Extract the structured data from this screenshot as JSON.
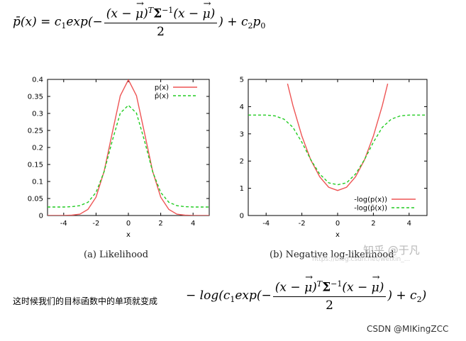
{
  "formula_top": {
    "lhs": "p̄(x) = c",
    "c1_sub": "1",
    "exp_open": "exp(−",
    "num_a": "(x − ",
    "mu": "μ",
    "num_b": ")",
    "T": "T",
    "Sigma": "Σ",
    "inv": "−1",
    "num_c": "(x − ",
    "num_d": ")",
    "den": "2",
    "tail": ") + c",
    "c2_sub": "2",
    "p0": "p",
    "p0_sub": "0"
  },
  "note": "这时候我们的目标函数中的单项就变成",
  "formula_bottom": {
    "lead": "− log(c",
    "c1_sub": "1",
    "exp_open": "exp(−",
    "num_a": "(x − ",
    "mu": "μ",
    "num_b": ")",
    "T": "T",
    "Sigma": "Σ",
    "inv": "−1",
    "num_c": "(x − ",
    "num_d": ")",
    "den": "2",
    "tail": ") + c",
    "c2_sub": "2",
    "close": ")"
  },
  "captions": {
    "a": "(a)  Likelihood",
    "b": "(b)  Negative log-likelihood"
  },
  "watermarks": {
    "zhihu": "知乎 @于凡",
    "blog": "https://blog.csdn.net/weixin_...",
    "csdn": "CSDN @MIKingZCC"
  },
  "colors": {
    "solid": "#ee5555",
    "dashed": "#22cc22"
  },
  "chart_data": [
    {
      "type": "line",
      "xlabel": "x",
      "ylabel": "",
      "xlim": [
        -5,
        5
      ],
      "ylim": [
        0,
        0.4
      ],
      "xticks": [
        -4,
        -2,
        0,
        2,
        4
      ],
      "yticks": [
        0,
        0.05,
        0.1,
        0.15,
        0.2,
        0.25,
        0.3,
        0.35,
        0.4
      ],
      "legend_position": "top-right",
      "series": [
        {
          "name": "p(x)",
          "style": "solid",
          "x": [
            -5,
            -4.5,
            -4,
            -3.5,
            -3,
            -2.5,
            -2,
            -1.5,
            -1,
            -0.5,
            0,
            0.5,
            1,
            1.5,
            2,
            2.5,
            3,
            3.5,
            4,
            4.5,
            5
          ],
          "y": [
            0,
            0,
            0,
            0.001,
            0.004,
            0.018,
            0.054,
            0.13,
            0.242,
            0.352,
            0.399,
            0.352,
            0.242,
            0.13,
            0.054,
            0.018,
            0.004,
            0.001,
            0,
            0,
            0
          ]
        },
        {
          "name": "p̄(x)",
          "style": "dashed",
          "x": [
            -5,
            -4.5,
            -4,
            -3.5,
            -3,
            -2.5,
            -2,
            -1.5,
            -1,
            -0.5,
            0,
            0.5,
            1,
            1.5,
            2,
            2.5,
            3,
            3.5,
            4,
            4.5,
            5
          ],
          "y": [
            0.025,
            0.025,
            0.025,
            0.026,
            0.029,
            0.039,
            0.068,
            0.129,
            0.219,
            0.301,
            0.324,
            0.301,
            0.219,
            0.129,
            0.068,
            0.039,
            0.029,
            0.026,
            0.025,
            0.025,
            0.025
          ]
        }
      ]
    },
    {
      "type": "line",
      "xlabel": "x",
      "ylabel": "",
      "xlim": [
        -5,
        5
      ],
      "ylim": [
        0,
        5
      ],
      "xticks": [
        -4,
        -2,
        0,
        2,
        4
      ],
      "yticks": [
        0,
        1,
        2,
        3,
        4,
        5
      ],
      "legend_position": "bottom-right",
      "series": [
        {
          "name": "-log(p(x))",
          "style": "solid",
          "x": [
            -2.8,
            -2.5,
            -2,
            -1.5,
            -1,
            -0.5,
            0,
            0.5,
            1,
            1.5,
            2,
            2.5,
            2.8
          ],
          "y": [
            4.84,
            4.04,
            2.92,
            2.04,
            1.42,
            1.04,
            0.92,
            1.04,
            1.42,
            2.04,
            2.92,
            4.04,
            4.84
          ]
        },
        {
          "name": "-log(p̄(x))",
          "style": "dashed",
          "x": [
            -5,
            -4.5,
            -4,
            -3.5,
            -3,
            -2.5,
            -2,
            -1.5,
            -1,
            -0.5,
            0,
            0.5,
            1,
            1.5,
            2,
            2.5,
            3,
            3.5,
            4,
            4.5,
            5
          ],
          "y": [
            3.69,
            3.69,
            3.69,
            3.66,
            3.54,
            3.24,
            2.69,
            2.05,
            1.52,
            1.2,
            1.13,
            1.2,
            1.52,
            2.05,
            2.69,
            3.24,
            3.54,
            3.66,
            3.69,
            3.69,
            3.69
          ]
        }
      ]
    }
  ]
}
